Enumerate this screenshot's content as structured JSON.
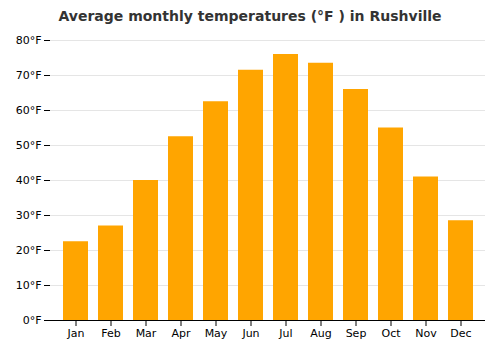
{
  "chart_data": {
    "type": "bar",
    "title": "Average monthly temperatures (°F ) in Rushville",
    "categories": [
      "Jan",
      "Feb",
      "Mar",
      "Apr",
      "May",
      "Jun",
      "Jul",
      "Aug",
      "Sep",
      "Oct",
      "Nov",
      "Dec"
    ],
    "values": [
      22.5,
      27.0,
      40.0,
      52.5,
      62.5,
      71.5,
      76.0,
      73.5,
      66.0,
      55.0,
      41.0,
      28.5
    ],
    "color": "#FFA500",
    "ylim": [
      0,
      80
    ],
    "yticks": [
      {
        "value": 0,
        "label": "0°F"
      },
      {
        "value": 10,
        "label": "10°F"
      },
      {
        "value": 20,
        "label": "20°F"
      },
      {
        "value": 30,
        "label": "30°F"
      },
      {
        "value": 40,
        "label": "40°F"
      },
      {
        "value": 50,
        "label": "50°F"
      },
      {
        "value": 60,
        "label": "60°F"
      },
      {
        "value": 70,
        "label": "70°F"
      },
      {
        "value": 80,
        "label": "80°F"
      }
    ],
    "grid": true
  }
}
